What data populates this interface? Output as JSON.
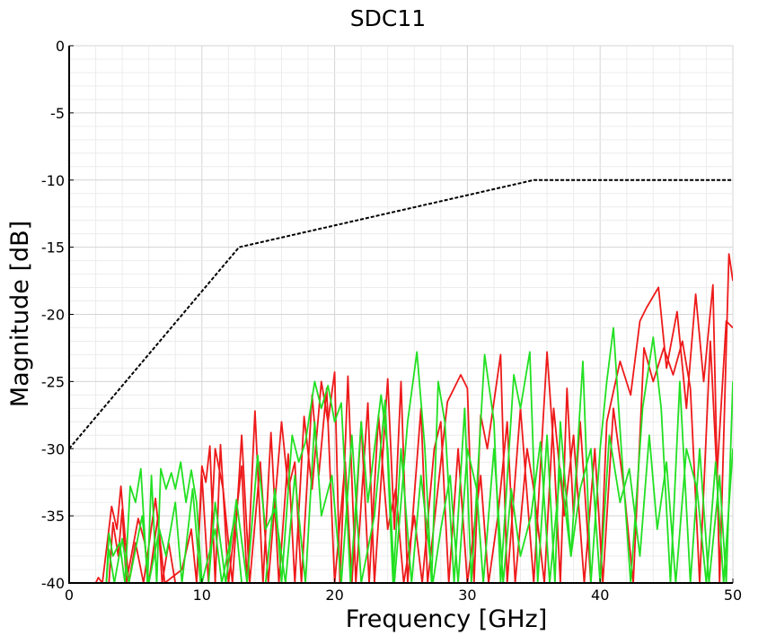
{
  "chart_data": {
    "type": "line",
    "title": "SDC11",
    "xlabel": "Frequency [GHz]",
    "ylabel": "Magnitude [dB]",
    "xlim": [
      0,
      50
    ],
    "ylim": [
      -40,
      0
    ],
    "xticks": [
      "0",
      "10",
      "20",
      "30",
      "40",
      "50"
    ],
    "yticks": [
      "0",
      "-5",
      "-10",
      "-15",
      "-20",
      "-25",
      "-30",
      "-35",
      "-40"
    ],
    "grid": true,
    "legend": "none",
    "colors": {
      "limit": "#000000",
      "red": "#ee1a1a",
      "green": "#22e022"
    },
    "limit_line": {
      "style": "dashed",
      "points": [
        [
          0,
          -30
        ],
        [
          12.8,
          -15
        ],
        [
          35,
          -10
        ],
        [
          50,
          -10
        ]
      ]
    },
    "series": [
      {
        "color": "#ee1a1a",
        "points": [
          [
            2,
            -40
          ],
          [
            2.2,
            -39.6
          ],
          [
            2.5,
            -40
          ],
          [
            3.2,
            -34.3
          ],
          [
            3.6,
            -36
          ],
          [
            3.9,
            -32.8
          ],
          [
            4.5,
            -40
          ],
          [
            5,
            -37
          ],
          [
            5.6,
            -40
          ],
          [
            6.5,
            -33.7
          ],
          [
            7.2,
            -40
          ],
          [
            8.5,
            -39
          ],
          [
            9.2,
            -36
          ],
          [
            9.6,
            -40
          ],
          [
            10,
            -31.3
          ],
          [
            10.3,
            -32.5
          ],
          [
            10.6,
            -29.8
          ],
          [
            11,
            -40
          ],
          [
            11.4,
            -29.7
          ],
          [
            12,
            -40
          ],
          [
            13,
            -31.3
          ],
          [
            13.4,
            -40
          ],
          [
            14,
            -27.2
          ],
          [
            14.6,
            -40
          ],
          [
            15.2,
            -28.8
          ],
          [
            15.8,
            -40
          ],
          [
            16.5,
            -30.4
          ],
          [
            17,
            -40
          ],
          [
            17.7,
            -27.6
          ],
          [
            18.3,
            -33
          ],
          [
            19,
            -25
          ],
          [
            19.5,
            -28
          ],
          [
            20,
            -24.3
          ],
          [
            20.4,
            -40
          ],
          [
            21,
            -24.6
          ],
          [
            21.6,
            -40
          ],
          [
            22.5,
            -26.6
          ],
          [
            23,
            -40
          ],
          [
            24,
            -24.8
          ],
          [
            24.5,
            -36
          ],
          [
            25,
            -25
          ],
          [
            25.5,
            -40
          ],
          [
            26.5,
            -27
          ],
          [
            27,
            -40
          ],
          [
            28.5,
            -26.5
          ],
          [
            29.5,
            -24.5
          ],
          [
            30,
            -25.5
          ],
          [
            30.5,
            -40
          ],
          [
            31,
            -27.5
          ],
          [
            31.5,
            -30
          ],
          [
            32.5,
            -23
          ],
          [
            33,
            -40
          ],
          [
            34,
            -27
          ],
          [
            35,
            -40
          ],
          [
            36,
            -22.8
          ],
          [
            36.5,
            -30
          ],
          [
            37,
            -40
          ],
          [
            37.5,
            -25.5
          ],
          [
            38,
            -35
          ],
          [
            38.5,
            -28
          ],
          [
            39.3,
            -40
          ],
          [
            40,
            -40
          ],
          [
            40.5,
            -28
          ],
          [
            41.5,
            -23.5
          ],
          [
            42.3,
            -26
          ],
          [
            43,
            -20.5
          ],
          [
            43.5,
            -19.5
          ],
          [
            44.4,
            -18
          ],
          [
            45,
            -24
          ],
          [
            45.8,
            -19.8
          ],
          [
            46.5,
            -27
          ],
          [
            47.2,
            -18.5
          ],
          [
            47.8,
            -25
          ],
          [
            48.5,
            -17.8
          ],
          [
            49,
            -40
          ],
          [
            49.7,
            -15.5
          ],
          [
            50,
            -17.5
          ]
        ]
      },
      {
        "color": "#ee1a1a",
        "points": [
          [
            3,
            -40
          ],
          [
            3.3,
            -35.5
          ],
          [
            3.7,
            -38
          ],
          [
            4,
            -34.5
          ],
          [
            4.3,
            -40
          ],
          [
            5.2,
            -35.2
          ],
          [
            5.7,
            -37
          ],
          [
            6,
            -40
          ],
          [
            6.7,
            -35
          ],
          [
            7,
            -40
          ],
          [
            7.5,
            -37
          ],
          [
            8,
            -40
          ],
          [
            9.6,
            -40
          ],
          [
            10,
            -32
          ],
          [
            10.5,
            -40
          ],
          [
            11,
            -30
          ],
          [
            11.6,
            -33
          ],
          [
            12.3,
            -40
          ],
          [
            13,
            -29
          ],
          [
            13.6,
            -40
          ],
          [
            14.4,
            -31
          ],
          [
            15,
            -40
          ],
          [
            16,
            -28
          ],
          [
            16.5,
            -33
          ],
          [
            17,
            -31
          ],
          [
            17.5,
            -40
          ],
          [
            18.3,
            -26
          ],
          [
            18.8,
            -32
          ],
          [
            19.4,
            -25.5
          ],
          [
            20,
            -40
          ],
          [
            20.8,
            -31
          ],
          [
            21.3,
            -40
          ],
          [
            22,
            -28
          ],
          [
            22.6,
            -40
          ],
          [
            23.3,
            -27.5
          ],
          [
            24,
            -36
          ],
          [
            24.6,
            -33
          ],
          [
            25.2,
            -40
          ],
          [
            26,
            -35
          ],
          [
            26.6,
            -40
          ],
          [
            27.5,
            -30
          ],
          [
            28,
            -28
          ],
          [
            28.6,
            -40
          ],
          [
            29.3,
            -30
          ],
          [
            30,
            -40
          ],
          [
            31,
            -32
          ],
          [
            31.6,
            -40
          ],
          [
            32.3,
            -35
          ],
          [
            33,
            -28
          ],
          [
            33.6,
            -40
          ],
          [
            34.5,
            -30
          ],
          [
            35,
            -33
          ],
          [
            35.8,
            -40
          ],
          [
            36.5,
            -27
          ],
          [
            37.3,
            -35
          ],
          [
            38,
            -29
          ],
          [
            38.8,
            -40
          ],
          [
            39.6,
            -30
          ],
          [
            40.2,
            -40
          ],
          [
            41,
            -27
          ],
          [
            41.8,
            -33
          ],
          [
            42.5,
            -40
          ],
          [
            43.3,
            -22.5
          ],
          [
            44,
            -25
          ],
          [
            44.8,
            -22.5
          ],
          [
            45.5,
            -24.5
          ],
          [
            46.2,
            -22
          ],
          [
            46.8,
            -25.5
          ],
          [
            47.5,
            -40
          ],
          [
            48.3,
            -22
          ],
          [
            48.8,
            -32
          ],
          [
            49.5,
            -20.5
          ],
          [
            50,
            -21
          ]
        ]
      },
      {
        "color": "#22e022",
        "points": [
          [
            2.8,
            -40
          ],
          [
            3,
            -36.3
          ],
          [
            3.3,
            -38
          ],
          [
            3.8,
            -37
          ],
          [
            4.2,
            -40
          ],
          [
            4.6,
            -32.8
          ],
          [
            5,
            -34
          ],
          [
            5.4,
            -31.5
          ],
          [
            5.9,
            -40
          ],
          [
            6.2,
            -32
          ],
          [
            6.6,
            -40
          ],
          [
            6.9,
            -31.5
          ],
          [
            7.3,
            -33
          ],
          [
            7.7,
            -31.8
          ],
          [
            8,
            -33
          ],
          [
            8.4,
            -31
          ],
          [
            8.8,
            -34
          ],
          [
            9.2,
            -31.6
          ],
          [
            9.6,
            -34
          ],
          [
            10,
            -40
          ],
          [
            11,
            -36
          ],
          [
            11.5,
            -40
          ],
          [
            12.5,
            -35
          ],
          [
            13,
            -40
          ],
          [
            14.8,
            -40
          ],
          [
            15.5,
            -33
          ],
          [
            16,
            -40
          ],
          [
            16.8,
            -29
          ],
          [
            17.3,
            -31
          ],
          [
            17.8,
            -29.5
          ],
          [
            18.5,
            -25
          ],
          [
            19,
            -27
          ],
          [
            19.5,
            -25.3
          ],
          [
            20,
            -28
          ],
          [
            20.5,
            -26.6
          ],
          [
            21.2,
            -40
          ],
          [
            22,
            -28
          ],
          [
            22.5,
            -34
          ],
          [
            23.5,
            -26
          ],
          [
            24,
            -30
          ],
          [
            24.5,
            -40
          ],
          [
            25.5,
            -28
          ],
          [
            26.2,
            -22.8
          ],
          [
            26.8,
            -30
          ],
          [
            27.3,
            -40
          ],
          [
            27.8,
            -25
          ],
          [
            28.3,
            -28
          ],
          [
            29,
            -40
          ],
          [
            29.8,
            -27
          ],
          [
            30.3,
            -40
          ],
          [
            31.3,
            -23
          ],
          [
            32,
            -28
          ],
          [
            32.5,
            -40
          ],
          [
            33.5,
            -24.5
          ],
          [
            34,
            -27
          ],
          [
            34.7,
            -22.8
          ],
          [
            35.3,
            -40
          ],
          [
            36,
            -29
          ],
          [
            36.6,
            -40
          ],
          [
            37,
            -28
          ],
          [
            37.8,
            -38
          ],
          [
            38.7,
            -23.5
          ],
          [
            39.3,
            -40
          ],
          [
            40,
            -30
          ],
          [
            40.5,
            -25
          ],
          [
            41,
            -21
          ],
          [
            41.6,
            -30
          ],
          [
            42.3,
            -40
          ],
          [
            43.2,
            -27
          ],
          [
            44,
            -21.7
          ],
          [
            44.6,
            -27
          ],
          [
            45.3,
            -40
          ],
          [
            46,
            -25
          ],
          [
            46.8,
            -40
          ],
          [
            47.5,
            -30
          ],
          [
            48.2,
            -40
          ],
          [
            49,
            -32
          ],
          [
            49.5,
            -40
          ],
          [
            50,
            -25
          ]
        ]
      },
      {
        "color": "#22e022",
        "points": [
          [
            2.8,
            -40
          ],
          [
            3,
            -37.5
          ],
          [
            3.4,
            -40
          ],
          [
            4,
            -36.7
          ],
          [
            4.5,
            -40
          ],
          [
            5.5,
            -35
          ],
          [
            6,
            -40
          ],
          [
            6.8,
            -36
          ],
          [
            7.3,
            -38
          ],
          [
            8,
            -34
          ],
          [
            8.5,
            -40
          ],
          [
            9.3,
            -33
          ],
          [
            9.9,
            -40
          ],
          [
            10.5,
            -40
          ],
          [
            11,
            -34
          ],
          [
            11.8,
            -40
          ],
          [
            12.6,
            -33.8
          ],
          [
            13.4,
            -40
          ],
          [
            14.2,
            -30.5
          ],
          [
            14.8,
            -36
          ],
          [
            15.5,
            -34.5
          ],
          [
            16.3,
            -40
          ],
          [
            17,
            -32
          ],
          [
            17.8,
            -40
          ],
          [
            18.5,
            -28
          ],
          [
            19,
            -35
          ],
          [
            19.8,
            -32
          ],
          [
            20.5,
            -40
          ],
          [
            21.3,
            -29
          ],
          [
            22,
            -40
          ],
          [
            23,
            -35
          ],
          [
            23.8,
            -26.4
          ],
          [
            24.4,
            -40
          ],
          [
            25,
            -30
          ],
          [
            25.8,
            -40
          ],
          [
            26.5,
            -32
          ],
          [
            27.4,
            -40
          ],
          [
            28,
            -36
          ],
          [
            28.7,
            -32
          ],
          [
            29.3,
            -40
          ],
          [
            30,
            -30
          ],
          [
            30.7,
            -33
          ],
          [
            31.2,
            -40
          ],
          [
            32,
            -30
          ],
          [
            32.7,
            -40
          ],
          [
            33.3,
            -33
          ],
          [
            34,
            -38
          ],
          [
            34.8,
            -35
          ],
          [
            35.5,
            -29.5
          ],
          [
            36.2,
            -40
          ],
          [
            37,
            -31.5
          ],
          [
            37.8,
            -38
          ],
          [
            38.5,
            -33
          ],
          [
            39.3,
            -30
          ],
          [
            40,
            -40
          ],
          [
            40.7,
            -29
          ],
          [
            41.5,
            -34
          ],
          [
            42.2,
            -31.5
          ],
          [
            43,
            -38
          ],
          [
            43.7,
            -29
          ],
          [
            44.3,
            -36
          ],
          [
            45,
            -31
          ],
          [
            45.7,
            -40
          ],
          [
            46.5,
            -30
          ],
          [
            47.3,
            -33
          ],
          [
            48,
            -40
          ],
          [
            48.7,
            -31
          ],
          [
            49.3,
            -40
          ],
          [
            50,
            -30
          ]
        ]
      }
    ]
  }
}
